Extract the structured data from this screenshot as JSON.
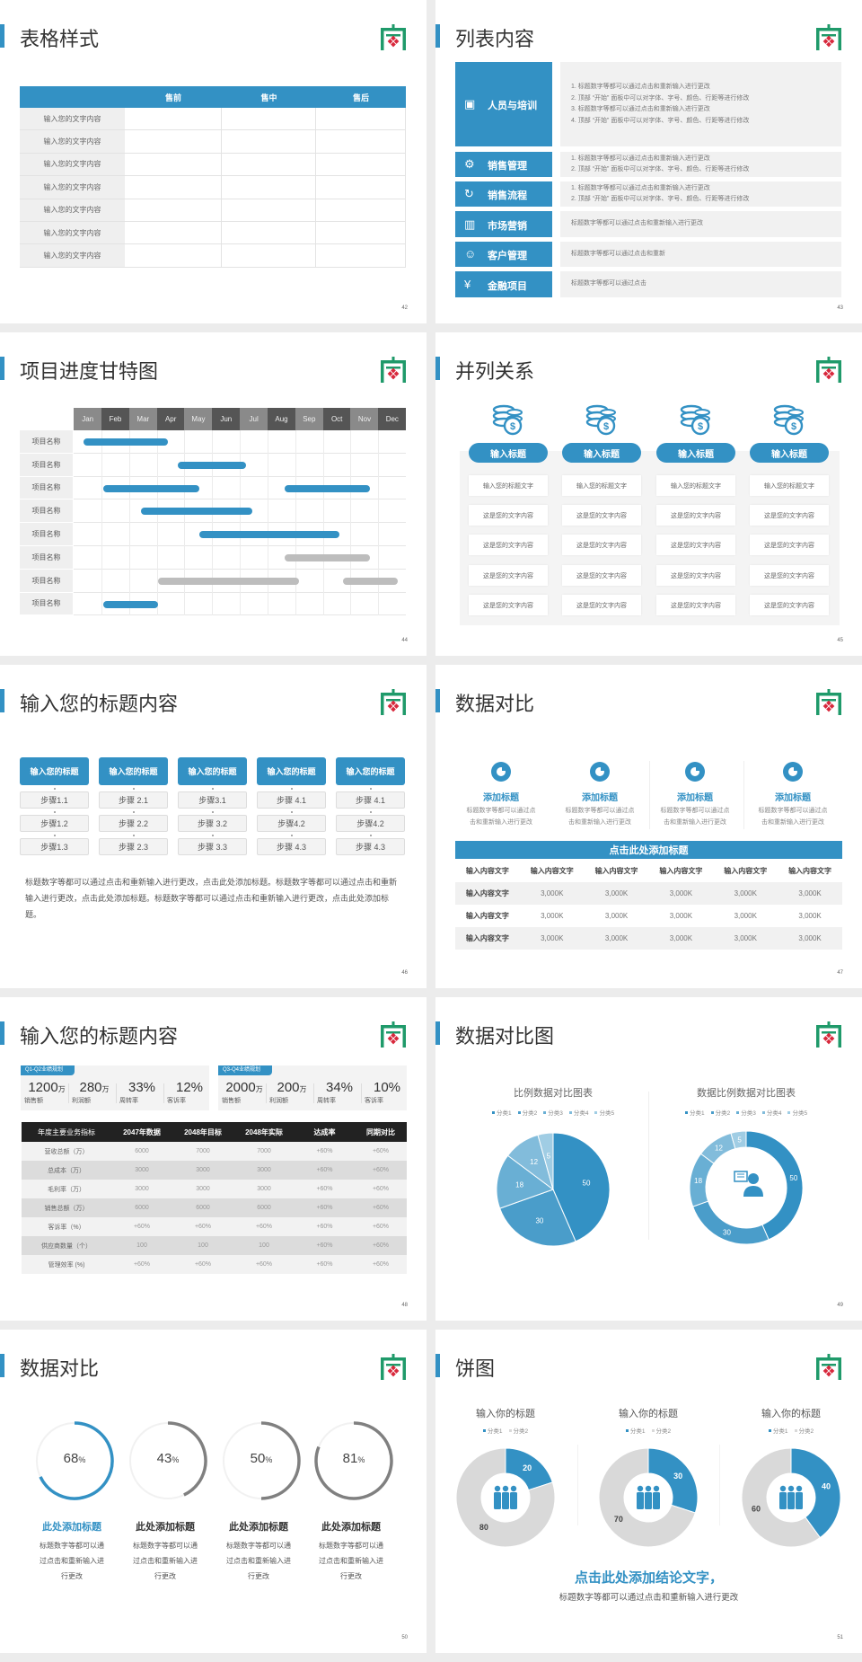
{
  "colors": {
    "accent": "#3391c4",
    "gray_bar": "#bdbdbd",
    "logo_green": "#1f9a6a",
    "logo_red": "#d8283c",
    "dark_header": "#222222"
  },
  "s42": {
    "title": "表格样式",
    "page": "42",
    "columns": [
      "",
      "售前",
      "售中",
      "售后"
    ],
    "rows": [
      "输入您的文字内容",
      "输入您的文字内容",
      "输入您的文字内容",
      "输入您的文字内容",
      "输入您的文字内容",
      "输入您的文字内容",
      "输入您的文字内容"
    ]
  },
  "s43": {
    "title": "列表内容",
    "page": "43",
    "items": [
      {
        "label": "人员与培训",
        "icon": "people-training-icon",
        "lines": [
          "1.   标题数字等都可以通过点击和重新输入进行更改",
          "2.   顶部 “开始” 面板中可以对字体、字号、颜色、行距等进行修改",
          "3.   标题数字等都可以通过点击和重新输入进行更改",
          "4.   顶部 “开始” 面板中可以对字体、字号、颜色、行距等进行修改"
        ]
      },
      {
        "label": "销售管理",
        "icon": "user-gear-icon",
        "lines": [
          "1.   标题数字等都可以通过点击和重新输入进行更改",
          "2.   顶部 “开始” 面板中可以对字体、字号、颜色、行距等进行修改"
        ]
      },
      {
        "label": "销售流程",
        "icon": "cycle-icon",
        "lines": [
          "1.   标题数字等都可以通过点击和重新输入进行更改",
          "2.   顶部 “开始” 面板中可以对字体、字号、颜色、行距等进行修改"
        ]
      },
      {
        "label": "市场营销",
        "icon": "bar-chart-icon",
        "lines": [
          "标题数字等都可以通过点击和重新输入进行更改"
        ]
      },
      {
        "label": "客户管理",
        "icon": "customers-icon",
        "lines": [
          "标题数字等都可以通过点击和重新"
        ]
      },
      {
        "label": "金融项目",
        "icon": "finance-hand-icon",
        "lines": [
          "标题数字等都可以通过点击"
        ]
      }
    ]
  },
  "s44": {
    "title": "项目进度甘特图",
    "page": "44",
    "months": [
      "Jan",
      "Feb",
      "Mar",
      "Apr",
      "May",
      "Jun",
      "Jul",
      "Aug",
      "Sep",
      "Oct",
      "Nov",
      "Dec"
    ],
    "rows": [
      {
        "label": "项目名称",
        "bars": [
          {
            "start": 0.35,
            "end": 3.4,
            "status": "active"
          }
        ]
      },
      {
        "label": "项目名称",
        "bars": [
          {
            "start": 3.77,
            "end": 6.23,
            "status": "active"
          }
        ]
      },
      {
        "label": "项目名称",
        "bars": [
          {
            "start": 1.07,
            "end": 4.54,
            "status": "active"
          },
          {
            "start": 7.62,
            "end": 10.7,
            "status": "active"
          }
        ]
      },
      {
        "label": "项目名称",
        "bars": [
          {
            "start": 2.43,
            "end": 6.45,
            "status": "active"
          }
        ]
      },
      {
        "label": "项目名称",
        "bars": [
          {
            "start": 4.54,
            "end": 9.6,
            "status": "active"
          }
        ]
      },
      {
        "label": "项目名称",
        "bars": [
          {
            "start": 7.62,
            "end": 10.7,
            "status": "planned"
          }
        ]
      },
      {
        "label": "项目名称",
        "bars": [
          {
            "start": 3.05,
            "end": 8.14,
            "status": "planned"
          },
          {
            "start": 9.73,
            "end": 11.7,
            "status": "planned"
          }
        ]
      },
      {
        "label": "项目名称",
        "bars": [
          {
            "start": 1.07,
            "end": 3.05,
            "status": "active"
          }
        ]
      }
    ]
  },
  "s45": {
    "title": "并列关系",
    "page": "45",
    "columns": [
      {
        "icon": "coins-dollar-icon",
        "title": "输入标题",
        "cells": [
          "输入您的标题文字",
          "这是您的文字内容",
          "这是您的文字内容",
          "这是您的文字内容",
          "这是您的文字内容"
        ]
      },
      {
        "icon": "coins-dollar-icon",
        "title": "输入标题",
        "cells": [
          "输入您的标题文字",
          "这是您的文字内容",
          "这是您的文字内容",
          "这是您的文字内容",
          "这是您的文字内容"
        ]
      },
      {
        "icon": "coins-dollar-icon",
        "title": "输入标题",
        "cells": [
          "输入您的标题文字",
          "这是您的文字内容",
          "这是您的文字内容",
          "这是您的文字内容",
          "这是您的文字内容"
        ]
      },
      {
        "icon": "coins-dollar-icon",
        "title": "输入标题",
        "cells": [
          "输入您的标题文字",
          "这是您的文字内容",
          "这是您的文字内容",
          "这是您的文字内容",
          "这是您的文字内容"
        ]
      }
    ]
  },
  "s46": {
    "title": "输入您的标题内容",
    "page": "46",
    "columns": [
      {
        "title": "输入您的标题",
        "steps": [
          "步骤1.1",
          "步骤1.2",
          "步骤1.3"
        ]
      },
      {
        "title": "输入您的标题",
        "steps": [
          "步骤 2.1",
          "步骤 2.2",
          "步骤 2.3"
        ]
      },
      {
        "title": "输入您的标题",
        "steps": [
          "步骤3.1",
          "步骤 3.2",
          "步骤 3.3"
        ]
      },
      {
        "title": "输入您的标题",
        "steps": [
          "步骤 4.1",
          "步骤4.2",
          "步骤 4.3"
        ]
      },
      {
        "title": "输入您的标题",
        "steps": [
          "步骤 4.1",
          "步骤4.2",
          "步骤 4.3"
        ]
      }
    ],
    "paragraph": "标题数字等都可以通过点击和重新输入进行更改，点击此处添加标题。标题数字等都可以通过点击和重新输入进行更改，点击此处添加标题。标题数字等都可以通过点击和重新输入进行更改，点击此处添加标题。"
  },
  "s47": {
    "title": "数据对比",
    "page": "47",
    "features": [
      {
        "icon": "pie-chart-icon",
        "title": "添加标题",
        "desc": "标题数字等都可以通过点击和重新输入进行更改"
      },
      {
        "icon": "pie-chart-icon",
        "title": "添加标题",
        "desc": "标题数字等都可以通过点击和重新输入进行更改"
      },
      {
        "icon": "pie-chart-icon",
        "title": "添加标题",
        "desc": "标题数字等都可以通过点击和重新输入进行更改"
      },
      {
        "icon": "pie-chart-icon",
        "title": "添加标题",
        "desc": "标题数字等都可以通过点击和重新输入进行更改"
      }
    ],
    "banner": "点击此处添加标题",
    "header": [
      "输入内容文字",
      "输入内容文字",
      "输入内容文字",
      "输入内容文字",
      "输入内容文字",
      "输入内容文字"
    ],
    "rows": [
      [
        "输入内容文字",
        "3,000K",
        "3,000K",
        "3,000K",
        "3,000K",
        "3,000K"
      ],
      [
        "输入内容文字",
        "3,000K",
        "3,000K",
        "3,000K",
        "3,000K",
        "3,000K"
      ],
      [
        "输入内容文字",
        "3,000K",
        "3,000K",
        "3,000K",
        "3,000K",
        "3,000K"
      ]
    ]
  },
  "s48": {
    "title": "输入您的标题内容",
    "page": "48",
    "panels": [
      {
        "tag": "Q1-Q2业绩规划",
        "kpis": [
          {
            "value": "1200",
            "unit": "万",
            "label": "销售额"
          },
          {
            "value": "280",
            "unit": "万",
            "label": "利润额"
          },
          {
            "value": "33%",
            "unit": "",
            "label": "周转率"
          },
          {
            "value": "12%",
            "unit": "",
            "label": "客诉率"
          }
        ]
      },
      {
        "tag": "Q3-Q4业绩规划",
        "kpis": [
          {
            "value": "2000",
            "unit": "万",
            "label": "销售额"
          },
          {
            "value": "200",
            "unit": "万",
            "label": "利润额"
          },
          {
            "value": "34%",
            "unit": "",
            "label": "周转率"
          },
          {
            "value": "10%",
            "unit": "",
            "label": "客诉率"
          }
        ]
      }
    ],
    "header": [
      "年度主要业务指标",
      "2047年数据",
      "2048年目标",
      "2048年实际",
      "达成率",
      "同期对比"
    ],
    "rows": [
      [
        "营收总额（万）",
        "6000",
        "7000",
        "7000",
        "+60%",
        "+60%"
      ],
      [
        "总成本（万）",
        "3000",
        "3000",
        "3000",
        "+60%",
        "+60%"
      ],
      [
        "毛利率（万）",
        "3000",
        "3000",
        "3000",
        "+60%",
        "+60%"
      ],
      [
        "销售总额（万）",
        "6000",
        "6000",
        "6000",
        "+60%",
        "+60%"
      ],
      [
        "客诉率（%）",
        "+60%",
        "+60%",
        "+60%",
        "+60%",
        "+60%"
      ],
      [
        "供应商数量（个）",
        "100",
        "100",
        "100",
        "+60%",
        "+60%"
      ],
      [
        "管理效率 (%)",
        "+60%",
        "+60%",
        "+60%",
        "+60%",
        "+60%"
      ]
    ]
  },
  "s49": {
    "title": "数据对比图",
    "page": "49"
  },
  "s50": {
    "title": "数据对比",
    "page": "50",
    "items": [
      {
        "percent": 68,
        "value": "68",
        "unit": "%",
        "title": "此处添加标题",
        "desc": "标题数字等都可以通过点击和重新输入进行更改",
        "highlight": true
      },
      {
        "percent": 43,
        "value": "43",
        "unit": "%",
        "title": "此处添加标题",
        "desc": "标题数字等都可以通过点击和重新输入进行更改",
        "highlight": false
      },
      {
        "percent": 50,
        "value": "50",
        "unit": "%",
        "title": "此处添加标题",
        "desc": "标题数字等都可以通过点击和重新输入进行更改",
        "highlight": false
      },
      {
        "percent": 81,
        "value": "81",
        "unit": "%",
        "title": "此处添加标题",
        "desc": "标题数字等都可以通过点击和重新输入进行更改",
        "highlight": false
      }
    ]
  },
  "s51": {
    "title": "饼图",
    "page": "51",
    "conclusion": "点击此处添加结论文字，",
    "sub": "标题数字等都可以通过点击和重新输入进行更改"
  },
  "chart_data": [
    {
      "type": "pie",
      "title": "比例数据对比图表",
      "categories": [
        "分类1",
        "分类2",
        "分类3",
        "分类4",
        "分类5"
      ],
      "values": [
        50,
        30,
        18,
        12,
        5
      ],
      "colors": [
        "#3391c4",
        "#4a9dca",
        "#69afd4",
        "#82bcdb",
        "#a0cde4"
      ],
      "legend": "top",
      "data_labels": true
    },
    {
      "type": "pie",
      "donut": true,
      "center_icon": "customer-service-icon",
      "title": "数据比例数据对比图表",
      "categories": [
        "分类1",
        "分类2",
        "分类3",
        "分类4",
        "分类5"
      ],
      "values": [
        50,
        30,
        18,
        12,
        5
      ],
      "colors": [
        "#3391c4",
        "#4a9dca",
        "#69afd4",
        "#82bcdb",
        "#a0cde4"
      ],
      "legend": "top",
      "data_labels": true
    },
    {
      "type": "pie",
      "donut": true,
      "center_icon": "team-icon",
      "title": "输入你的标题",
      "categories": [
        "分类1",
        "分类2"
      ],
      "values": [
        20,
        80
      ],
      "colors": [
        "#3391c4",
        "#d9d9d9"
      ],
      "legend": "top",
      "data_labels": true
    },
    {
      "type": "pie",
      "donut": true,
      "center_icon": "team-icon",
      "title": "输入你的标题",
      "categories": [
        "分类1",
        "分类2"
      ],
      "values": [
        30,
        70
      ],
      "colors": [
        "#3391c4",
        "#d9d9d9"
      ],
      "legend": "top",
      "data_labels": true
    },
    {
      "type": "pie",
      "donut": true,
      "center_icon": "team-icon",
      "title": "输入你的标题",
      "categories": [
        "分类1",
        "分类2"
      ],
      "values": [
        40,
        60
      ],
      "colors": [
        "#3391c4",
        "#d9d9d9"
      ],
      "legend": "top",
      "data_labels": true
    }
  ]
}
